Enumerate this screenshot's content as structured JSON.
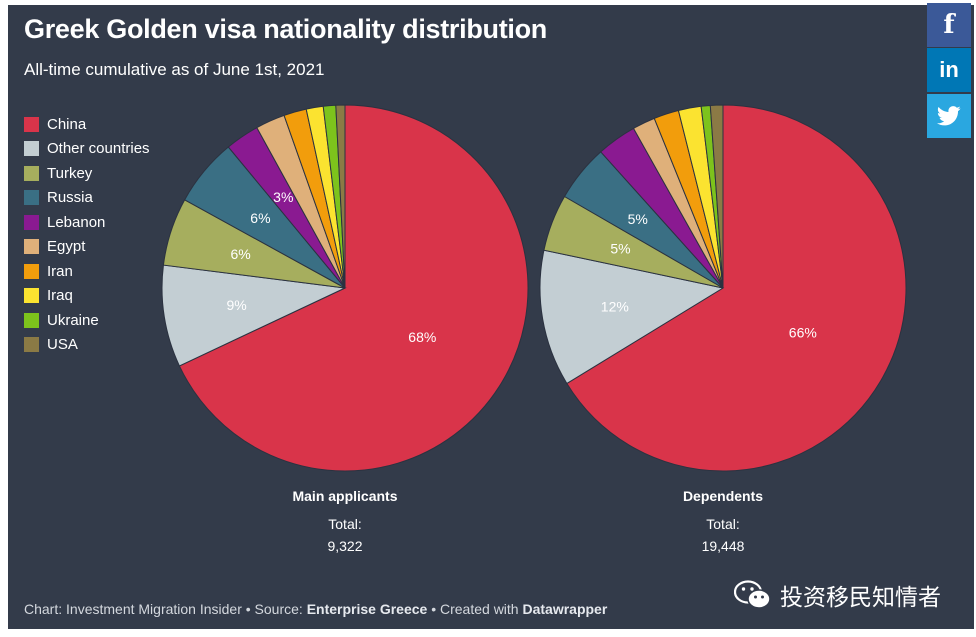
{
  "header": {
    "title": "Greek Golden visa nationality distribution",
    "subtitle": "All-time cumulative as of June 1st, 2021"
  },
  "legend": [
    {
      "label": "China",
      "color": "#d9344a"
    },
    {
      "label": "Other countries",
      "color": "#c3ced3"
    },
    {
      "label": "Turkey",
      "color": "#a6ae5e"
    },
    {
      "label": "Russia",
      "color": "#3a6f84"
    },
    {
      "label": "Lebanon",
      "color": "#8a1a91"
    },
    {
      "label": "Egypt",
      "color": "#dfb07a"
    },
    {
      "label": "Iran",
      "color": "#f29d0c"
    },
    {
      "label": "Iraq",
      "color": "#fbe330"
    },
    {
      "label": "Ukraine",
      "color": "#7dc31c"
    },
    {
      "label": "USA",
      "color": "#8b7a45"
    }
  ],
  "chart_data": [
    {
      "type": "pie",
      "title": "Main applicants",
      "total_label": "Total:",
      "total": "9,322",
      "slices": [
        {
          "label": "China",
          "value": 68,
          "display": "68%"
        },
        {
          "label": "Other countries",
          "value": 9,
          "display": "9%"
        },
        {
          "label": "Turkey",
          "value": 6,
          "display": "6%"
        },
        {
          "label": "Russia",
          "value": 6,
          "display": "6%"
        },
        {
          "label": "Lebanon",
          "value": 3,
          "display": "3%"
        },
        {
          "label": "Egypt",
          "value": 2.6,
          "display": ""
        },
        {
          "label": "Iran",
          "value": 2,
          "display": ""
        },
        {
          "label": "Iraq",
          "value": 1.5,
          "display": ""
        },
        {
          "label": "Ukraine",
          "value": 1.1,
          "display": ""
        },
        {
          "label": "USA",
          "value": 0.8,
          "display": ""
        }
      ]
    },
    {
      "type": "pie",
      "title": "Dependents",
      "total_label": "Total:",
      "total": "19,448",
      "slices": [
        {
          "label": "China",
          "value": 66,
          "display": "66%"
        },
        {
          "label": "Other countries",
          "value": 12,
          "display": "12%"
        },
        {
          "label": "Turkey",
          "value": 5,
          "display": "5%"
        },
        {
          "label": "Russia",
          "value": 5,
          "display": "5%"
        },
        {
          "label": "Lebanon",
          "value": 3.5,
          "display": ""
        },
        {
          "label": "Egypt",
          "value": 2,
          "display": ""
        },
        {
          "label": "Iran",
          "value": 2.2,
          "display": ""
        },
        {
          "label": "Iraq",
          "value": 2,
          "display": ""
        },
        {
          "label": "Ukraine",
          "value": 0.8,
          "display": ""
        },
        {
          "label": "USA",
          "value": 1.1,
          "display": ""
        }
      ]
    }
  ],
  "footer": {
    "chart_prefix": "Chart: Investment Migration Insider • Source: ",
    "source": "Enterprise Greece",
    "created_prefix": " • Created with ",
    "tool": "Datawrapper"
  },
  "share": {
    "facebook": "f",
    "linkedin": "in",
    "twitter_icon": "twitter-bird-icon"
  },
  "watermark": {
    "text": "投资移民知情者",
    "icon": "wechat-icon"
  }
}
